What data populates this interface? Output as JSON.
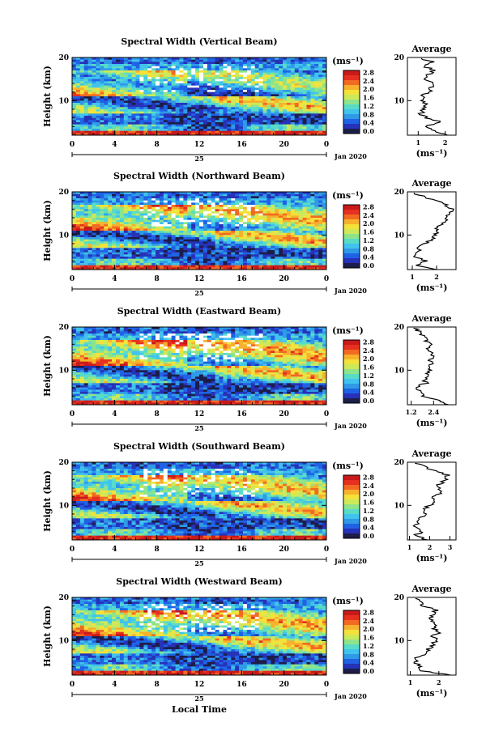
{
  "figure": {
    "date_label": "Jan 2020",
    "day_label": "25",
    "x_axis_label": "Local Time",
    "y_axis_label": "Height (km)",
    "colorbar_unit": "(ms⁻¹)",
    "average_title": "Average",
    "average_unit": "(ms⁻¹)"
  },
  "palette": [
    "#1d1d4a",
    "#2632b8",
    "#1f62e6",
    "#2f9ae6",
    "#41c3ee",
    "#58dcc7",
    "#8ee48a",
    "#cde95a",
    "#f4e23b",
    "#f7b12d",
    "#f26a22",
    "#e63020",
    "#c81a1a"
  ],
  "chart_data": [
    {
      "type": "heatmap",
      "title": "Spectral Width (Vertical Beam)",
      "xlabel": "Local Time",
      "ylabel": "Height (km)",
      "x_ticks": [
        "0",
        "4",
        "8",
        "12",
        "16",
        "20",
        "0"
      ],
      "y_ticks": [
        "20",
        "10"
      ],
      "xlim": [
        0,
        24
      ],
      "ylim": [
        2,
        20
      ],
      "colorbar": {
        "ticks": [
          "2.8",
          "2.4",
          "2.0",
          "1.6",
          "1.2",
          "0.8",
          "0.4",
          "0.0"
        ],
        "range": [
          0.0,
          2.8
        ]
      },
      "level": 0.38,
      "average": {
        "xlim": [
          0.6,
          2.4
        ],
        "x_ticks": [
          "1",
          "2"
        ],
        "y_ticks": [
          "20",
          "10"
        ],
        "heights": [
          2,
          3,
          4,
          5,
          6,
          7,
          8,
          9,
          10,
          11,
          12,
          13,
          14,
          15,
          16,
          17,
          18,
          19,
          20
        ],
        "values": [
          2.1,
          1.6,
          1.2,
          1.9,
          1.3,
          1.1,
          1.2,
          1.3,
          1.2,
          1.1,
          1.4,
          1.5,
          1.6,
          1.3,
          1.4,
          1.6,
          1.2,
          1.5,
          1.0
        ]
      }
    },
    {
      "type": "heatmap",
      "title": "Spectral Width (Northward Beam)",
      "xlabel": "Local Time",
      "ylabel": "Height (km)",
      "x_ticks": [
        "0",
        "4",
        "8",
        "12",
        "16",
        "20",
        "0"
      ],
      "y_ticks": [
        "20",
        "10"
      ],
      "xlim": [
        0,
        24
      ],
      "ylim": [
        2,
        20
      ],
      "colorbar": {
        "ticks": [
          "2.8",
          "2.4",
          "2.0",
          "1.6",
          "1.2",
          "0.8",
          "0.4",
          "0.0"
        ],
        "range": [
          0.0,
          2.8
        ]
      },
      "level": 0.52,
      "average": {
        "xlim": [
          0.8,
          2.8
        ],
        "x_ticks": [
          "1",
          "2"
        ],
        "y_ticks": [
          "20",
          "10"
        ],
        "heights": [
          2,
          3,
          4,
          5,
          6,
          7,
          8,
          9,
          10,
          11,
          12,
          13,
          14,
          15,
          16,
          17,
          18,
          19,
          20
        ],
        "values": [
          2.0,
          1.2,
          1.6,
          1.1,
          1.3,
          1.2,
          1.5,
          1.8,
          1.9,
          2.0,
          2.1,
          2.3,
          2.4,
          2.5,
          2.6,
          2.4,
          1.9,
          1.4,
          1.0
        ]
      }
    },
    {
      "type": "heatmap",
      "title": "Spectral Width (Eastward Beam)",
      "xlabel": "Local Time",
      "ylabel": "Height (km)",
      "x_ticks": [
        "0",
        "4",
        "8",
        "12",
        "16",
        "20",
        "0"
      ],
      "y_ticks": [
        "20",
        "10"
      ],
      "xlim": [
        0,
        24
      ],
      "ylim": [
        2,
        20
      ],
      "colorbar": {
        "ticks": [
          "2.8",
          "2.4",
          "2.0",
          "1.6",
          "1.2",
          "0.8",
          "0.4",
          "0.0"
        ],
        "range": [
          0.0,
          2.8
        ]
      },
      "level": 0.55,
      "average": {
        "xlim": [
          1.0,
          3.6
        ],
        "x_ticks": [
          "1.2",
          "2.4"
        ],
        "y_ticks": [
          "20",
          "10"
        ],
        "heights": [
          2,
          3,
          4,
          5,
          6,
          7,
          8,
          9,
          10,
          11,
          12,
          13,
          14,
          15,
          16,
          17,
          18,
          19,
          20
        ],
        "values": [
          3.2,
          2.6,
          1.8,
          1.7,
          1.4,
          2.0,
          1.9,
          2.1,
          2.2,
          2.3,
          2.2,
          2.4,
          2.3,
          2.1,
          2.2,
          2.0,
          1.8,
          1.6,
          1.3
        ]
      }
    },
    {
      "type": "heatmap",
      "title": "Spectral Width (Southward Beam)",
      "xlabel": "Local Time",
      "ylabel": "Height (km)",
      "x_ticks": [
        "0",
        "4",
        "8",
        "12",
        "16",
        "20",
        "0"
      ],
      "y_ticks": [
        "20",
        "10"
      ],
      "xlim": [
        0,
        24
      ],
      "ylim": [
        2,
        20
      ],
      "colorbar": {
        "ticks": [
          "2.8",
          "2.4",
          "2.0",
          "1.6",
          "1.2",
          "0.8",
          "0.4",
          "0.0"
        ],
        "range": [
          0.0,
          2.8
        ]
      },
      "level": 0.5,
      "average": {
        "xlim": [
          0.9,
          3.3
        ],
        "x_ticks": [
          "1",
          "2",
          "3"
        ],
        "y_ticks": [
          "20",
          "10"
        ],
        "heights": [
          2,
          3,
          4,
          5,
          6,
          7,
          8,
          9,
          10,
          11,
          12,
          13,
          14,
          15,
          16,
          17,
          18,
          19,
          20
        ],
        "values": [
          1.9,
          1.3,
          1.6,
          1.2,
          1.4,
          1.5,
          1.8,
          1.7,
          2.0,
          2.2,
          2.1,
          2.6,
          2.4,
          2.5,
          2.8,
          2.9,
          2.2,
          1.7,
          1.2
        ]
      }
    },
    {
      "type": "heatmap",
      "title": "Spectral Width (Westward Beam)",
      "xlabel": "Local Time",
      "ylabel": "Height (km)",
      "x_ticks": [
        "0",
        "4",
        "8",
        "12",
        "16",
        "20",
        "0"
      ],
      "y_ticks": [
        "20",
        "10"
      ],
      "xlim": [
        0,
        24
      ],
      "ylim": [
        2,
        20
      ],
      "colorbar": {
        "ticks": [
          "2.8",
          "2.4",
          "2.0",
          "1.6",
          "1.2",
          "0.8",
          "0.4",
          "0.0"
        ],
        "range": [
          0.0,
          2.8
        ]
      },
      "level": 0.53,
      "average": {
        "xlim": [
          0.9,
          2.6
        ],
        "x_ticks": [
          "1",
          "2"
        ],
        "y_ticks": [
          "20",
          "10"
        ],
        "heights": [
          2,
          3,
          4,
          5,
          6,
          7,
          8,
          9,
          10,
          11,
          12,
          13,
          14,
          15,
          16,
          17,
          18,
          19,
          20
        ],
        "values": [
          2.4,
          1.4,
          1.3,
          1.2,
          1.2,
          1.5,
          1.6,
          1.8,
          1.9,
          1.8,
          2.0,
          1.8,
          1.9,
          1.7,
          1.8,
          1.9,
          1.5,
          1.3,
          1.2
        ]
      }
    }
  ]
}
